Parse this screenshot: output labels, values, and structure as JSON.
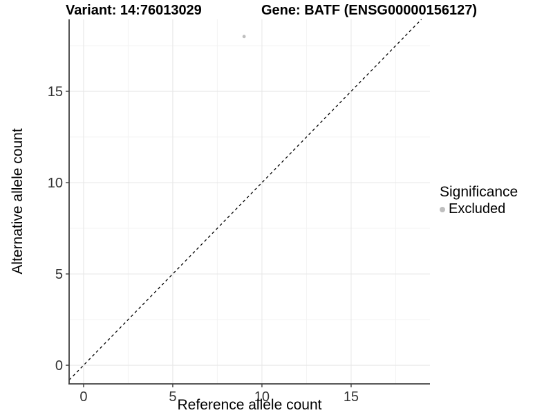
{
  "figure": {
    "title_left": "Variant: 14:76013029",
    "title_right": "Gene: BATF (ENSG00000156127)"
  },
  "chart_data": {
    "type": "scatter",
    "title": "Variant: 14:76013029   Gene: BATF (ENSG00000156127)",
    "xlabel": "Reference allele count",
    "ylabel": "Alternative allele count",
    "xlim": [
      -0.81,
      19.42
    ],
    "ylim": [
      -1.02,
      18.94
    ],
    "x_ticks": [
      0,
      5,
      10,
      15
    ],
    "y_ticks": [
      0,
      5,
      10,
      15
    ],
    "x_minor_ticks": [
      2.5,
      7.5,
      12.5,
      17.5
    ],
    "y_minor_ticks": [
      2.5,
      7.5,
      12.5,
      17.5
    ],
    "grid": true,
    "series": [
      {
        "name": "Excluded",
        "color": "#bebebe",
        "points": [
          {
            "x": 9,
            "y": 18
          }
        ]
      }
    ],
    "reference_line": {
      "kind": "identity",
      "intercept": 0,
      "slope": 1,
      "style": "dashed",
      "color": "#000000"
    },
    "legend": {
      "title": "Significance",
      "position": "right",
      "items": [
        {
          "label": "Excluded",
          "marker": "circle",
          "color": "#bebebe"
        }
      ]
    }
  },
  "colors": {
    "background": "#ffffff",
    "axis_line": "#3f3f3f",
    "grid_major": "#e8e8e8",
    "grid_minor": "#f3f3f3",
    "tick_label": "#333333",
    "point": "#bebebe",
    "dashed_line": "#000000"
  }
}
